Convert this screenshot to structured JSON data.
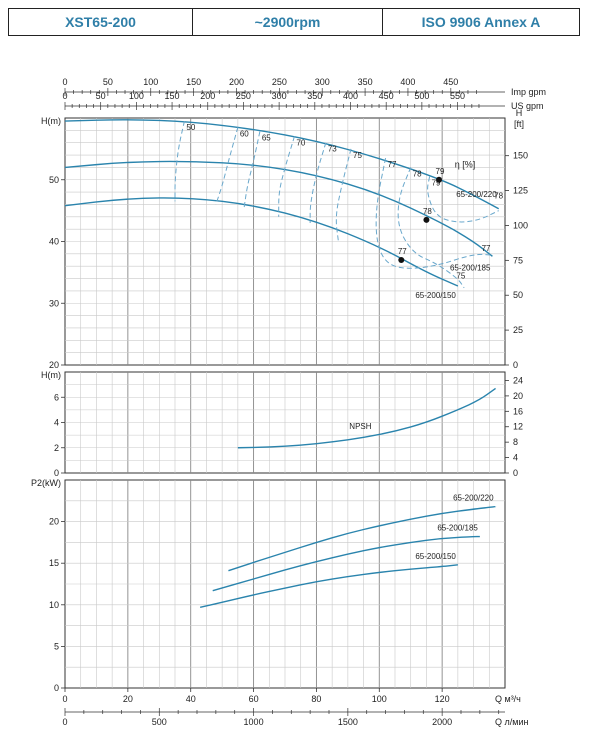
{
  "header": {
    "model": "XST65-200",
    "speed": "~2900rpm",
    "standard": "ISO 9906   Annex A"
  },
  "chart_data": [
    {
      "type": "line",
      "name": "head-curves",
      "ylabel": "H(m)",
      "ylabel_right": "H [ft]",
      "ylabel_right_line1": "H",
      "ylabel_right_line2": "[ft]",
      "efficiency_label": "η [%]",
      "ylim": [
        20,
        60
      ],
      "yticks": [
        20,
        30,
        40,
        50
      ],
      "yticks_right": [
        0,
        25,
        50,
        75,
        100,
        125,
        150
      ],
      "top_axis_imp": {
        "label": "Imp gpm",
        "ticks": [
          0,
          50,
          100,
          150,
          200,
          250,
          300,
          350,
          400,
          450
        ]
      },
      "top_axis_us": {
        "label": "US gpm",
        "ticks": [
          0,
          50,
          100,
          150,
          200,
          250,
          300,
          350,
          400,
          450,
          500,
          550
        ]
      },
      "series": [
        {
          "name": "65-200/220",
          "x": [
            0,
            20,
            40,
            60,
            80,
            100,
            120,
            130,
            138
          ],
          "y": [
            59.5,
            59.8,
            59.4,
            58.2,
            56.3,
            53.5,
            50,
            47.5,
            45.3
          ]
        },
        {
          "name": "65-200/185",
          "x": [
            0,
            20,
            40,
            60,
            80,
            100,
            120,
            130,
            136
          ],
          "y": [
            52,
            52.9,
            53,
            52.5,
            50.8,
            47.8,
            43,
            40,
            37.6
          ]
        },
        {
          "name": "65-200/150",
          "x": [
            0,
            20,
            40,
            60,
            80,
            100,
            115,
            125
          ],
          "y": [
            45.8,
            47,
            47.1,
            45.9,
            43.3,
            39.2,
            35,
            32.8
          ]
        }
      ],
      "efficiency_contours": [
        {
          "label": "50",
          "points": [
            [
              38,
              59.5
            ],
            [
              36,
              55
            ],
            [
              35,
              50
            ],
            [
              35,
              46.5
            ]
          ]
        },
        {
          "label": "60",
          "points": [
            [
              55,
              58.5
            ],
            [
              52,
              53
            ],
            [
              50,
              49
            ],
            [
              48,
              46
            ]
          ]
        },
        {
          "label": "65",
          "points": [
            [
              62,
              57.8
            ],
            [
              60,
              53
            ],
            [
              58,
              49
            ],
            [
              57,
              45.5
            ]
          ]
        },
        {
          "label": "70",
          "points": [
            [
              73,
              57
            ],
            [
              70,
              52
            ],
            [
              68,
              48
            ],
            [
              68,
              44
            ]
          ]
        },
        {
          "label": "73",
          "points": [
            [
              83,
              56
            ],
            [
              80,
              51
            ],
            [
              78,
              46
            ],
            [
              78,
              43
            ]
          ]
        },
        {
          "label": "75",
          "points": [
            [
              91,
              55
            ],
            [
              88,
              49
            ],
            [
              86,
              44
            ],
            [
              87,
              40
            ]
          ]
        },
        {
          "label": "77",
          "points": [
            [
              102,
              53.5
            ],
            [
              99,
              46
            ],
            [
              99,
              40
            ],
            [
              102,
              36.5
            ],
            [
              108,
              35.5
            ],
            [
              118,
              36
            ],
            [
              130,
              38
            ],
            [
              136,
              37.8
            ]
          ]
        },
        {
          "label": "78",
          "points": [
            [
              110,
              52
            ],
            [
              106,
              47
            ],
            [
              106,
              42
            ],
            [
              111,
              38
            ],
            [
              118,
              36.5
            ],
            [
              125,
              34
            ],
            [
              127,
              32.5
            ]
          ]
        },
        {
          "label": "79",
          "points": [
            [
              116,
              50.5
            ],
            [
              115,
              48
            ],
            [
              118,
              44
            ],
            [
              125,
              43
            ],
            [
              132,
              43.5
            ],
            [
              138,
              45
            ]
          ]
        }
      ],
      "contour_side_labels": [
        {
          "label": "78",
          "x": 134,
          "y": 47
        },
        {
          "label": "77",
          "x": 130,
          "y": 38.5
        },
        {
          "label": "75",
          "x": 122,
          "y": 34
        }
      ],
      "bep_points": [
        {
          "x": 119,
          "y": 50,
          "label": "79"
        },
        {
          "x": 115,
          "y": 43.5,
          "label": "78"
        },
        {
          "x": 107,
          "y": 37,
          "label": "77"
        }
      ]
    },
    {
      "type": "line",
      "name": "npsh-curve",
      "ylabel": "H(m)",
      "ylim": [
        0,
        8
      ],
      "yticks": [
        0,
        2,
        4,
        6
      ],
      "yticks_right": [
        0,
        4,
        8,
        12,
        16,
        20,
        24
      ],
      "series": [
        {
          "name": "NPSH",
          "x": [
            55,
            65,
            75,
            85,
            95,
            105,
            115,
            125,
            132,
            137
          ],
          "y": [
            2.0,
            2.05,
            2.2,
            2.45,
            2.8,
            3.3,
            4.0,
            5.0,
            5.8,
            6.7
          ]
        }
      ]
    },
    {
      "type": "line",
      "name": "power-curves",
      "ylabel": "P2(kW)",
      "ylim": [
        0,
        25
      ],
      "yticks": [
        0,
        5,
        10,
        15,
        20
      ],
      "xlabel": "Q м³/ч",
      "xlabel2": "Q л/мин",
      "xticks": [
        0,
        20,
        40,
        60,
        80,
        100,
        120
      ],
      "xticks2": [
        0,
        500,
        1000,
        1500,
        2000
      ],
      "series": [
        {
          "name": "65-200/220",
          "x": [
            52,
            60,
            70,
            80,
            90,
            100,
            110,
            120,
            130,
            137
          ],
          "y": [
            14.1,
            15.1,
            16.3,
            17.5,
            18.6,
            19.5,
            20.3,
            21.0,
            21.5,
            21.8
          ]
        },
        {
          "name": "65-200/185",
          "x": [
            47,
            60,
            70,
            80,
            90,
            100,
            110,
            120,
            130,
            132
          ],
          "y": [
            11.7,
            13.1,
            14.2,
            15.2,
            16.1,
            16.9,
            17.5,
            18.0,
            18.2,
            18.2
          ]
        },
        {
          "name": "65-200/150",
          "x": [
            43,
            50,
            60,
            70,
            80,
            90,
            100,
            110,
            120,
            125
          ],
          "y": [
            9.7,
            10.3,
            11.2,
            12.0,
            12.8,
            13.4,
            13.9,
            14.3,
            14.6,
            14.8
          ]
        }
      ]
    }
  ]
}
